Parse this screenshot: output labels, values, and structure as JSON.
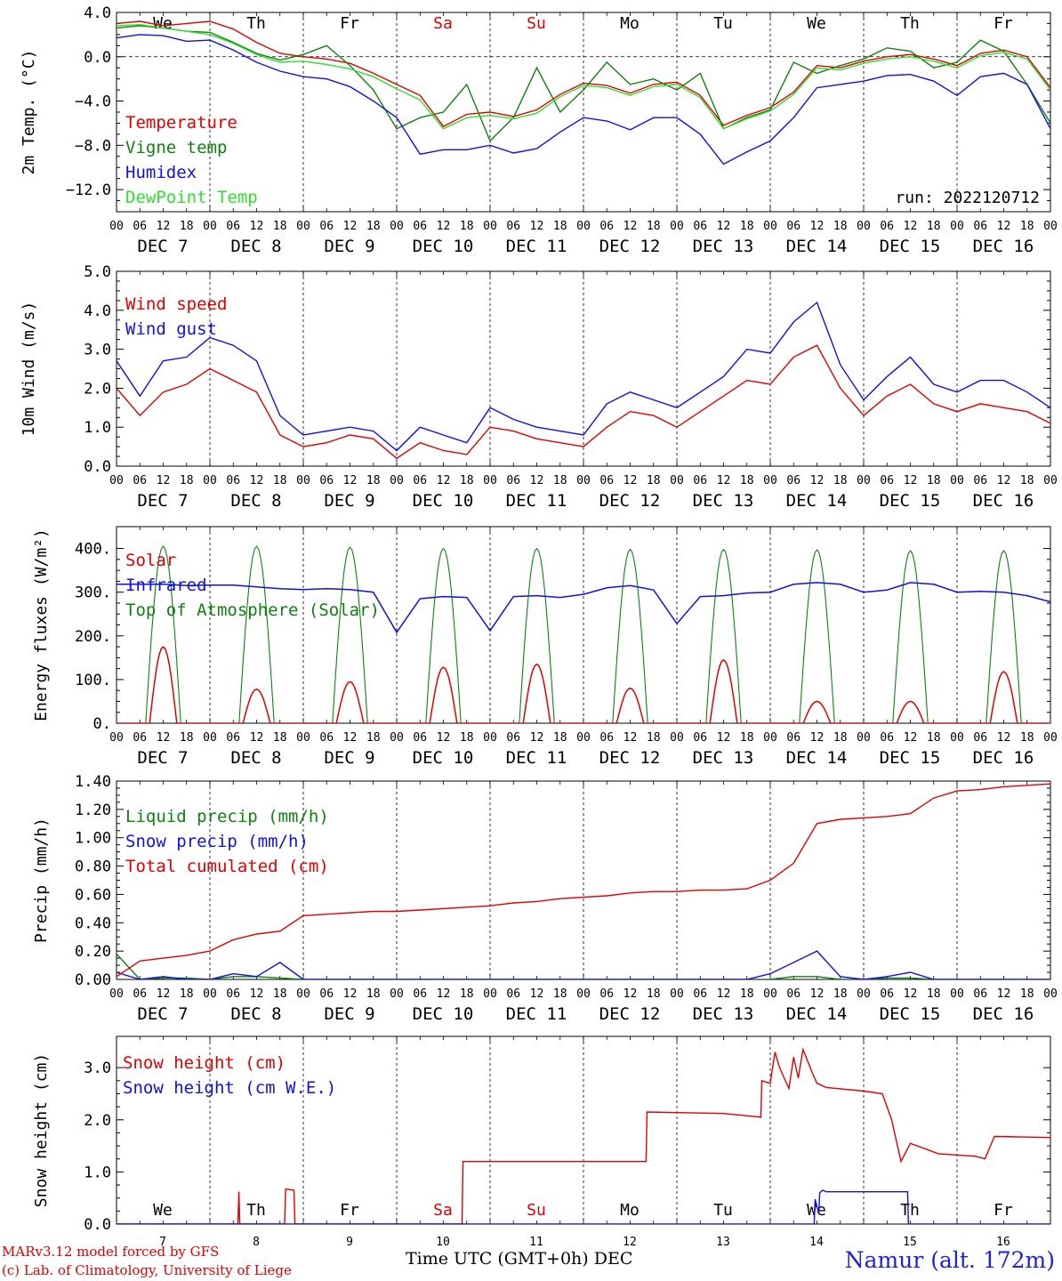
{
  "footer": {
    "credit_line1": "MARv3.12 model forced by GFS",
    "credit_line2": "(c) Lab. of Climatology, University of Liege",
    "station": "Namur (alt. 172m)",
    "x_title": "Time UTC (GMT+0h) DEC"
  },
  "chart_data": [
    {
      "type": "line",
      "ylabel": "2m Temp. (°C)",
      "ylim": [
        -14,
        4
      ],
      "yticks": [
        "4.0",
        "0.0",
        "−4.0",
        "−8.0",
        "−12.0"
      ],
      "ytick_values": [
        4,
        0,
        -4,
        -8,
        -12
      ],
      "zero_line": true,
      "day_names": [
        "We",
        "Th",
        "Fr",
        "Sa",
        "Su",
        "Mo",
        "Tu",
        "We",
        "Th",
        "Fr"
      ],
      "weekend_color": "#e00000",
      "run_label": "run: 2022120712",
      "x_hour_ticks": [
        "00",
        "06",
        "12",
        "18"
      ],
      "x_date_labels": [
        "DEC 7",
        "DEC 8",
        "DEC 9",
        "DEC 10",
        "DEC 11",
        "DEC 12",
        "DEC 13",
        "DEC 14",
        "DEC 15",
        "DEC 16"
      ],
      "x_range_days": [
        0,
        10
      ],
      "x": [
        0,
        0.25,
        0.5,
        0.75,
        1,
        1.25,
        1.5,
        1.75,
        2,
        2.25,
        2.5,
        2.75,
        3,
        3.25,
        3.5,
        3.75,
        4,
        4.25,
        4.5,
        4.75,
        5,
        5.25,
        5.5,
        5.75,
        6,
        6.25,
        6.5,
        6.75,
        7,
        7.25,
        7.5,
        7.75,
        8,
        8.25,
        8.5,
        8.75,
        9,
        9.25,
        9.5,
        9.75,
        10
      ],
      "series": [
        {
          "name": "Temperature",
          "color": "#e00000",
          "values": [
            3.0,
            3.2,
            2.8,
            3.0,
            3.2,
            2.5,
            1.3,
            0.3,
            0.0,
            -0.2,
            -0.6,
            -1.5,
            -2.5,
            -3.5,
            -6.3,
            -5.2,
            -5.0,
            -5.4,
            -4.8,
            -3.4,
            -2.4,
            -2.6,
            -3.3,
            -2.5,
            -2.3,
            -3.5,
            -6.2,
            -5.3,
            -4.6,
            -3.2,
            -0.8,
            -1.0,
            -0.4,
            0.0,
            0.2,
            -0.2,
            -0.8,
            0.3,
            0.6,
            0.0,
            -2.8
          ]
        },
        {
          "name": "Vigne temp",
          "color": "#108010",
          "values": [
            2.6,
            2.8,
            2.6,
            2.3,
            2.2,
            1.3,
            0.3,
            -0.3,
            0.2,
            1.0,
            -0.8,
            -3.0,
            -6.5,
            -5.5,
            -5.0,
            -2.5,
            -7.6,
            -5.5,
            -1.0,
            -5.0,
            -3.0,
            -0.5,
            -2.5,
            -2.0,
            -3.0,
            -1.5,
            -6.5,
            -5.5,
            -4.8,
            -0.5,
            -1.5,
            -0.8,
            -0.2,
            0.8,
            0.5,
            -1.0,
            -0.5,
            1.5,
            0.5,
            -2.5,
            -6.0
          ]
        },
        {
          "name": "Humidex",
          "color": "#1010e0",
          "values": [
            1.7,
            2.0,
            1.9,
            1.4,
            1.5,
            0.6,
            -0.5,
            -1.3,
            -1.8,
            -2.0,
            -2.7,
            -4.0,
            -5.5,
            -8.8,
            -8.4,
            -8.4,
            -8.0,
            -8.7,
            -8.3,
            -6.8,
            -5.5,
            -5.8,
            -6.6,
            -5.5,
            -5.5,
            -7.0,
            -9.7,
            -8.6,
            -7.6,
            -5.5,
            -2.8,
            -2.5,
            -2.2,
            -1.7,
            -1.6,
            -2.2,
            -3.5,
            -1.8,
            -1.5,
            -2.5,
            -6.5
          ]
        },
        {
          "name": "DewPoint Temp",
          "color": "#30e030",
          "values": [
            2.8,
            2.9,
            2.6,
            2.3,
            2.0,
            1.2,
            0.2,
            -0.5,
            -0.4,
            -0.7,
            -1.1,
            -1.8,
            -2.9,
            -3.9,
            -6.5,
            -5.5,
            -5.3,
            -5.6,
            -5.1,
            -3.6,
            -2.6,
            -2.8,
            -3.5,
            -2.7,
            -2.5,
            -3.7,
            -6.5,
            -5.6,
            -4.9,
            -3.4,
            -1.0,
            -1.2,
            -0.6,
            -0.2,
            0.0,
            -0.4,
            -1.0,
            0.1,
            0.4,
            -0.2,
            -3.0
          ]
        }
      ]
    },
    {
      "type": "line",
      "ylabel": "10m Wind (m/s)",
      "ylim": [
        0,
        5
      ],
      "yticks": [
        "5.0",
        "4.0",
        "3.0",
        "2.0",
        "1.0",
        "0.0"
      ],
      "ytick_values": [
        5,
        4,
        3,
        2,
        1,
        0
      ],
      "x_hour_ticks": [
        "00",
        "06",
        "12",
        "18"
      ],
      "x_date_labels": [
        "DEC 7",
        "DEC 8",
        "DEC 9",
        "DEC 10",
        "DEC 11",
        "DEC 12",
        "DEC 13",
        "DEC 14",
        "DEC 15",
        "DEC 16"
      ],
      "x_range_days": [
        0,
        10
      ],
      "x": [
        0,
        0.25,
        0.5,
        0.75,
        1,
        1.25,
        1.5,
        1.75,
        2,
        2.25,
        2.5,
        2.75,
        3,
        3.25,
        3.5,
        3.75,
        4,
        4.25,
        4.5,
        4.75,
        5,
        5.25,
        5.5,
        5.75,
        6,
        6.25,
        6.5,
        6.75,
        7,
        7.25,
        7.5,
        7.75,
        8,
        8.25,
        8.5,
        8.75,
        9,
        9.25,
        9.5,
        9.75,
        10
      ],
      "series": [
        {
          "name": "Wind speed",
          "color": "#e00000",
          "values": [
            2.0,
            1.3,
            1.9,
            2.1,
            2.5,
            2.2,
            1.9,
            0.8,
            0.5,
            0.6,
            0.8,
            0.7,
            0.2,
            0.6,
            0.4,
            0.3,
            1.0,
            0.9,
            0.7,
            0.6,
            0.5,
            1.0,
            1.4,
            1.3,
            1.0,
            1.4,
            1.8,
            2.2,
            2.1,
            2.8,
            3.1,
            2.0,
            1.3,
            1.8,
            2.1,
            1.6,
            1.4,
            1.6,
            1.5,
            1.4,
            1.1
          ]
        },
        {
          "name": "Wind gust",
          "color": "#1010e0",
          "values": [
            2.7,
            1.8,
            2.7,
            2.8,
            3.3,
            3.1,
            2.7,
            1.3,
            0.8,
            0.9,
            1.0,
            0.9,
            0.4,
            1.0,
            0.8,
            0.6,
            1.5,
            1.2,
            1.0,
            0.9,
            0.8,
            1.6,
            1.9,
            1.7,
            1.5,
            1.9,
            2.3,
            3.0,
            2.9,
            3.7,
            4.2,
            2.6,
            1.7,
            2.3,
            2.8,
            2.1,
            1.9,
            2.2,
            2.2,
            1.9,
            1.5
          ]
        }
      ]
    },
    {
      "type": "line",
      "ylabel": "Energy fluxes (W/m²)",
      "ylim": [
        0,
        450
      ],
      "yticks": [
        "400.",
        "300.",
        "200.",
        "100.",
        "0."
      ],
      "ytick_values": [
        400,
        300,
        200,
        100,
        0
      ],
      "x_hour_ticks": [
        "00",
        "06",
        "12",
        "18"
      ],
      "x_date_labels": [
        "DEC 7",
        "DEC 8",
        "DEC 9",
        "DEC 10",
        "DEC 11",
        "DEC 12",
        "DEC 13",
        "DEC 14",
        "DEC 15",
        "DEC 16"
      ],
      "x_range_days": [
        0,
        10
      ],
      "solar_day_peaks": [
        175,
        78,
        95,
        128,
        135,
        80,
        145,
        50,
        50,
        118
      ],
      "toa_day_peaks": [
        405,
        405,
        403,
        400,
        400,
        398,
        398,
        397,
        395,
        395
      ],
      "infrared_x": [
        0,
        0.25,
        0.5,
        0.75,
        1,
        1.25,
        1.5,
        1.75,
        2,
        2.25,
        2.5,
        2.75,
        3,
        3.25,
        3.5,
        3.75,
        4,
        4.25,
        4.5,
        4.75,
        5,
        5.25,
        5.5,
        5.75,
        6,
        6.25,
        6.5,
        6.75,
        7,
        7.25,
        7.5,
        7.75,
        8,
        8.25,
        8.5,
        8.75,
        9,
        9.25,
        9.5,
        9.75,
        10
      ],
      "series": [
        {
          "name": "Solar",
          "color": "#e00000"
        },
        {
          "name": "Infrared",
          "color": "#1010e0",
          "values": [
            318,
            318,
            318,
            315,
            316,
            316,
            312,
            308,
            306,
            308,
            306,
            300,
            208,
            285,
            290,
            288,
            212,
            290,
            292,
            288,
            295,
            310,
            315,
            305,
            228,
            290,
            292,
            298,
            300,
            318,
            322,
            318,
            300,
            305,
            322,
            318,
            300,
            302,
            300,
            292,
            278
          ]
        },
        {
          "name": "Top of Atmosphere (Solar)",
          "color": "#108010"
        }
      ]
    },
    {
      "type": "line",
      "ylabel": "Precip (mm/h)",
      "ylim": [
        0,
        1.4
      ],
      "yticks": [
        "1.40",
        "1.20",
        "1.00",
        "0.80",
        "0.60",
        "0.40",
        "0.20",
        "0.00"
      ],
      "ytick_values": [
        1.4,
        1.2,
        1.0,
        0.8,
        0.6,
        0.4,
        0.2,
        0.0
      ],
      "x_hour_ticks": [
        "00",
        "06",
        "12",
        "18"
      ],
      "x_date_labels": [
        "DEC 7",
        "DEC 8",
        "DEC 9",
        "DEC 10",
        "DEC 11",
        "DEC 12",
        "DEC 13",
        "DEC 14",
        "DEC 15",
        "DEC 16"
      ],
      "x_range_days": [
        0,
        10
      ],
      "x": [
        0,
        0.25,
        0.5,
        0.75,
        1,
        1.25,
        1.5,
        1.75,
        2,
        2.25,
        2.5,
        2.75,
        3,
        3.25,
        3.5,
        3.75,
        4,
        4.25,
        4.5,
        4.75,
        5,
        5.25,
        5.5,
        5.75,
        6,
        6.25,
        6.5,
        6.75,
        7,
        7.25,
        7.5,
        7.75,
        8,
        8.25,
        8.5,
        8.75,
        9,
        9.25,
        9.5,
        9.75,
        10
      ],
      "series": [
        {
          "name": "Liquid precip (mm/h)",
          "color": "#108010",
          "values": [
            0.18,
            0.0,
            0.01,
            0.01,
            0.0,
            0.02,
            0.02,
            0.01,
            0.0,
            0.0,
            0.0,
            0.0,
            0.0,
            0.0,
            0.0,
            0.0,
            0.0,
            0.0,
            0.0,
            0.0,
            0.0,
            0.0,
            0.0,
            0.0,
            0.0,
            0.0,
            0.0,
            0.0,
            0.0,
            0.02,
            0.02,
            0.0,
            0.0,
            0.01,
            0.01,
            0.0,
            0.0,
            0.0,
            0.0,
            0.0,
            0.0
          ]
        },
        {
          "name": "Snow precip (mm/h)",
          "color": "#1010e0",
          "values": [
            0.05,
            0.0,
            0.02,
            0.0,
            0.0,
            0.04,
            0.02,
            0.12,
            0.0,
            0.0,
            0.0,
            0.0,
            0.0,
            0.0,
            0.0,
            0.0,
            0.0,
            0.0,
            0.0,
            0.0,
            0.0,
            0.0,
            0.0,
            0.0,
            0.0,
            0.0,
            0.0,
            0.0,
            0.04,
            0.12,
            0.2,
            0.02,
            0.0,
            0.02,
            0.05,
            0.0,
            0.0,
            0.0,
            0.0,
            0.0,
            0.0
          ]
        },
        {
          "name": "Total cumulated (cm)",
          "color": "#e00000",
          "values": [
            0.02,
            0.13,
            0.15,
            0.17,
            0.2,
            0.28,
            0.32,
            0.34,
            0.45,
            0.46,
            0.47,
            0.48,
            0.48,
            0.49,
            0.5,
            0.51,
            0.52,
            0.54,
            0.55,
            0.57,
            0.58,
            0.59,
            0.61,
            0.62,
            0.62,
            0.63,
            0.63,
            0.64,
            0.7,
            0.82,
            1.1,
            1.13,
            1.14,
            1.15,
            1.17,
            1.28,
            1.33,
            1.34,
            1.36,
            1.37,
            1.38
          ]
        }
      ]
    },
    {
      "type": "line",
      "ylabel": "Snow height (cm)",
      "ylim": [
        0,
        3.6
      ],
      "yticks": [
        "3.0",
        "2.0",
        "1.0",
        "0.0"
      ],
      "ytick_values": [
        3,
        2,
        1,
        0
      ],
      "day_names": [
        "We",
        "Th",
        "Fr",
        "Sa",
        "Su",
        "Mo",
        "Tu",
        "We",
        "Th",
        "Fr"
      ],
      "weekend_color": "#e00000",
      "x_day_numbers": [
        "7",
        "8",
        "9",
        "10",
        "11",
        "12",
        "13",
        "14",
        "15",
        "16"
      ],
      "x_range_days": [
        0,
        10
      ],
      "series": [
        {
          "name": "Snow height (cm)",
          "color": "#e00000",
          "x": [
            0,
            1.3,
            1.31,
            1.32,
            1.8,
            1.81,
            1.9,
            1.91,
            3.7,
            3.71,
            4.5,
            5.5,
            5.67,
            5.68,
            6.5,
            6.9,
            6.91,
            7.0,
            7.05,
            7.1,
            7.2,
            7.25,
            7.3,
            7.35,
            7.45,
            7.5,
            7.6,
            8.0,
            8.2,
            8.3,
            8.4,
            8.5,
            8.8,
            9.2,
            9.3,
            9.4,
            10
          ],
          "values": [
            0,
            0,
            0.62,
            0,
            0,
            0.67,
            0.65,
            0,
            0,
            1.2,
            1.2,
            1.2,
            1.2,
            2.15,
            2.12,
            2.05,
            2.75,
            2.7,
            3.3,
            3.0,
            2.6,
            3.2,
            2.8,
            3.35,
            2.9,
            2.7,
            2.62,
            2.55,
            2.5,
            2.0,
            1.2,
            1.55,
            1.35,
            1.3,
            1.25,
            1.68,
            1.66
          ]
        },
        {
          "name": "Snow height (cm W.E.)",
          "color": "#1010e0",
          "x": [
            0,
            7.47,
            7.48,
            7.52,
            7.53,
            7.56,
            7.6,
            8.47,
            8.48,
            10
          ],
          "values": [
            0,
            0,
            0.48,
            0.2,
            0.6,
            0.65,
            0.62,
            0.62,
            0,
            0
          ]
        }
      ]
    }
  ]
}
